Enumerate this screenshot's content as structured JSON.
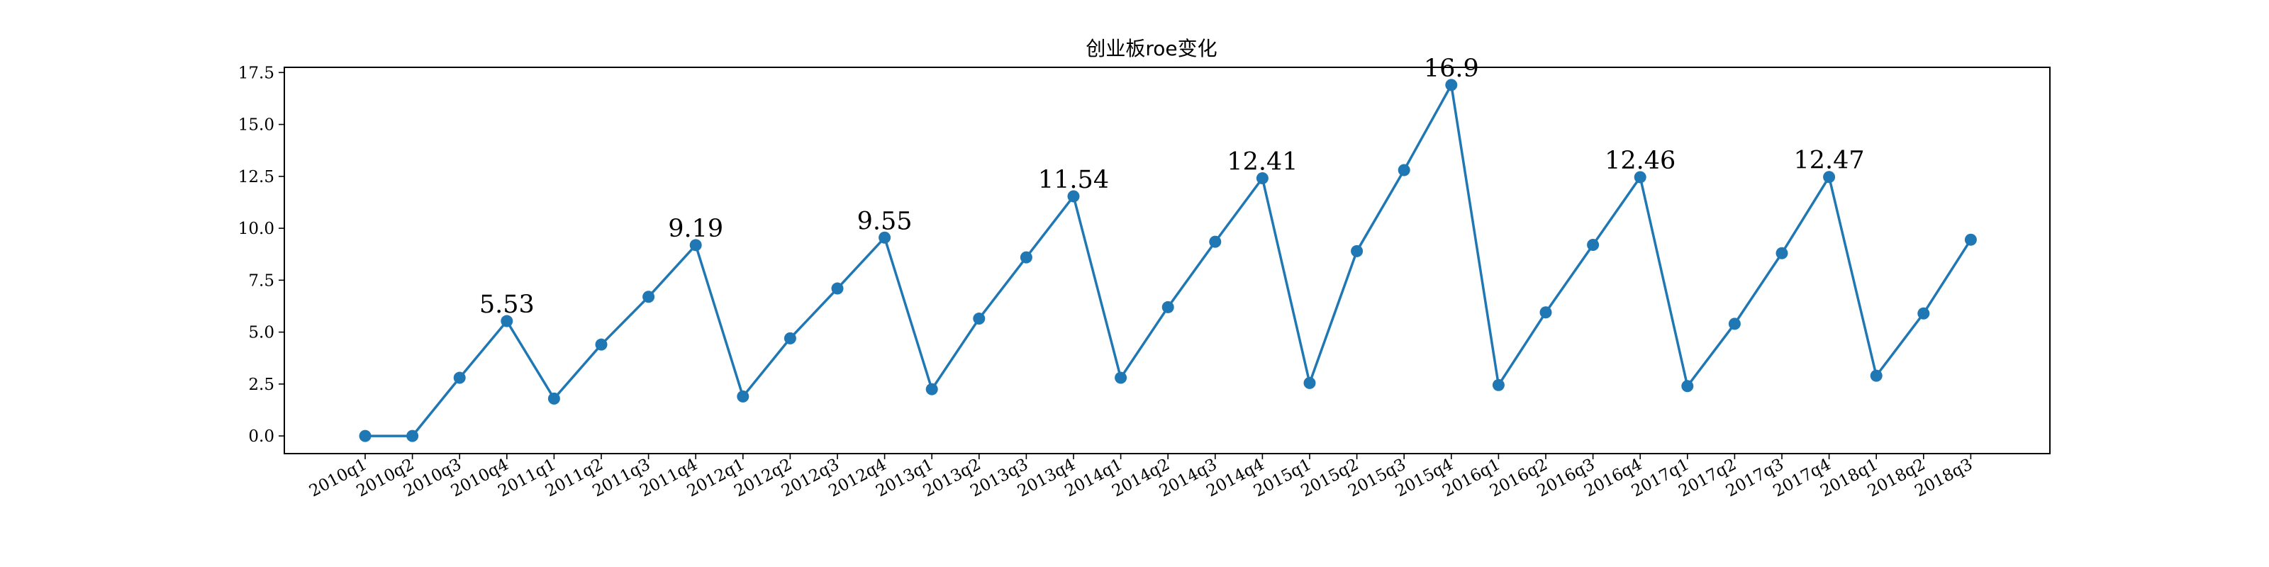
{
  "chart_data": {
    "type": "line",
    "title": "创业板roe变化",
    "xlabel": "",
    "ylabel": "",
    "categories": [
      "2010q1",
      "2010q2",
      "2010q3",
      "2010q4",
      "2011q1",
      "2011q2",
      "2011q3",
      "2011q4",
      "2012q1",
      "2012q2",
      "2012q3",
      "2012q4",
      "2013q1",
      "2013q2",
      "2013q3",
      "2013q4",
      "2014q1",
      "2014q2",
      "2014q3",
      "2014q4",
      "2015q1",
      "2015q2",
      "2015q3",
      "2015q4",
      "2016q1",
      "2016q2",
      "2016q3",
      "2016q4",
      "2017q1",
      "2017q2",
      "2017q3",
      "2017q4",
      "2018q1",
      "2018q2",
      "2018q3"
    ],
    "values": [
      0,
      0,
      2.8,
      5.53,
      1.8,
      4.4,
      6.7,
      9.19,
      1.9,
      4.7,
      7.1,
      9.55,
      2.25,
      5.65,
      8.6,
      11.54,
      2.8,
      6.2,
      9.35,
      12.41,
      2.55,
      8.9,
      12.8,
      16.9,
      2.45,
      5.95,
      9.2,
      12.46,
      2.4,
      5.4,
      8.8,
      12.47,
      2.9,
      5.9,
      9.45
    ],
    "annotations": [
      {
        "index": 3,
        "text": "5.53"
      },
      {
        "index": 7,
        "text": "9.19"
      },
      {
        "index": 11,
        "text": "9.55"
      },
      {
        "index": 15,
        "text": "11.54"
      },
      {
        "index": 19,
        "text": "12.41"
      },
      {
        "index": 23,
        "text": "16.9"
      },
      {
        "index": 27,
        "text": "12.46"
      },
      {
        "index": 31,
        "text": "12.47"
      }
    ],
    "yticks": [
      "0.0",
      "2.5",
      "5.0",
      "7.5",
      "10.0",
      "12.5",
      "15.0",
      "17.5"
    ],
    "ylim": [
      -0.85,
      17.75
    ],
    "grid": false,
    "legend": "none",
    "line_color": "#1f77b4"
  }
}
